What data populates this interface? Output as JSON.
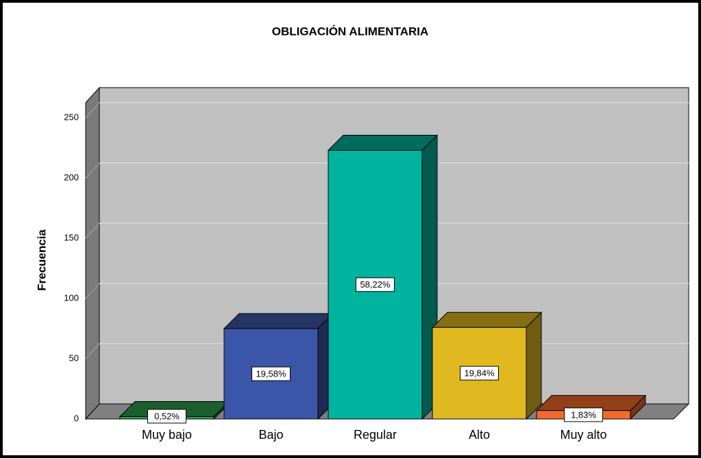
{
  "chart_data": {
    "type": "bar3d",
    "title": "OBLIGACIÓN ALIMENTARIA",
    "y_label": "Frecuencia",
    "categories": [
      "Muy bajo",
      "Bajo",
      "Regular",
      "Alto",
      "Muy alto"
    ],
    "values": [
      2,
      75,
      223,
      76,
      7
    ],
    "percent_labels": [
      "0,52%",
      "19,58%",
      "58,22%",
      "19,84%",
      "1,83%"
    ],
    "colors": [
      "#2e9e4f",
      "#3b56a8",
      "#00b39e",
      "#e0b820",
      "#f26a2a"
    ],
    "ylim": [
      0,
      250
    ],
    "yticks": [
      0,
      50,
      100,
      150,
      200,
      250
    ],
    "grid": true
  }
}
